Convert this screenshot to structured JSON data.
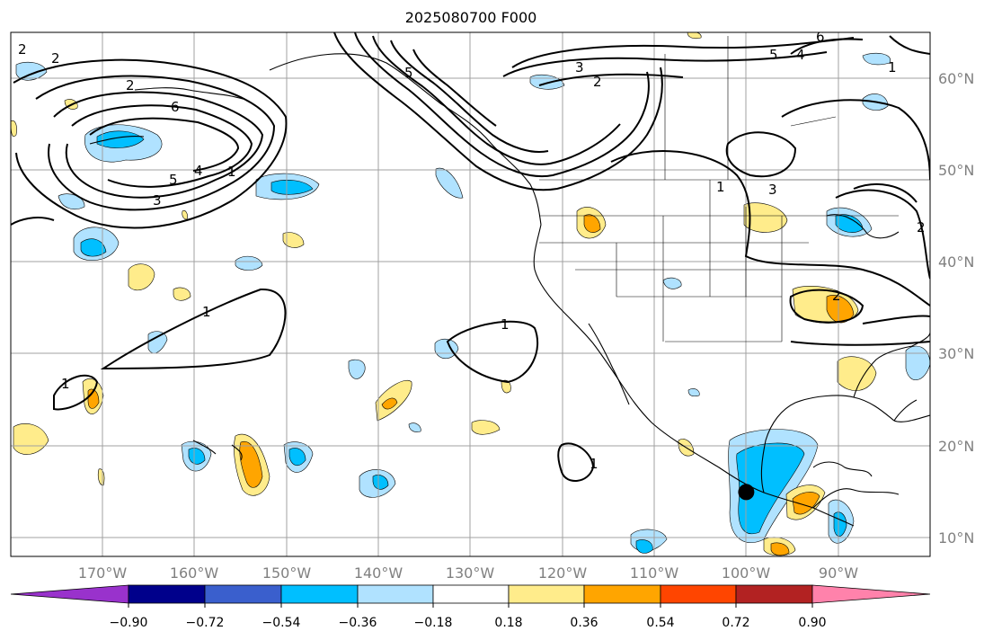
{
  "title": "2025080700 F000",
  "map": {
    "projection": "PlateCarree",
    "lon_range": [
      -180,
      -80
    ],
    "lat_range": [
      8,
      65
    ],
    "lon_ticks": [
      "170°W",
      "160°W",
      "150°W",
      "140°W",
      "130°W",
      "120°W",
      "110°W",
      "100°W",
      "90°W"
    ],
    "lat_ticks": [
      "60°N",
      "50°N",
      "40°N",
      "30°N",
      "20°N",
      "10°N"
    ],
    "grid": true,
    "marker": {
      "lon": -100,
      "lat": 15,
      "color": "#000000"
    },
    "contour_labels": [
      "2",
      "2",
      "6",
      "5",
      "4",
      "3",
      "1",
      "5",
      "3",
      "2",
      "6",
      "5",
      "4",
      "1",
      "1",
      "3",
      "2",
      "1",
      "1",
      "1",
      "2",
      "1",
      "2"
    ]
  },
  "colorbar": {
    "ticks": [
      "−0.90",
      "−0.72",
      "−0.54",
      "−0.36",
      "−0.18",
      "0.18",
      "0.36",
      "0.54",
      "0.72",
      "0.90"
    ],
    "colors": [
      "#9932cc",
      "#00008b",
      "#3a5fcd",
      "#00bfff",
      "#b0e2ff",
      "#ffffff",
      "#ffec8b",
      "#ffa500",
      "#ff4500",
      "#b22222",
      "#ff82ab"
    ]
  }
}
